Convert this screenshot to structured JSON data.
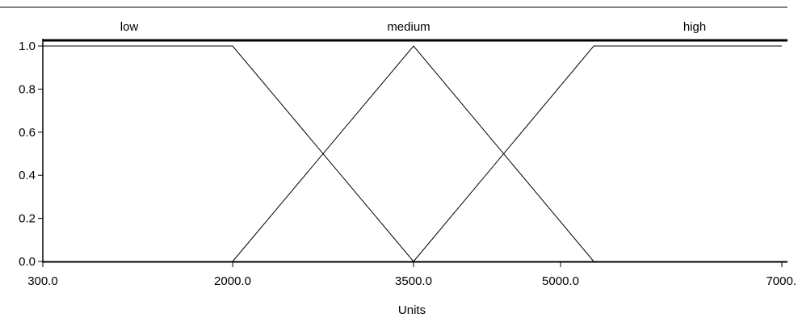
{
  "chart_data": {
    "type": "line",
    "xlabel": "Units",
    "ylabel": "",
    "xlim": [
      300,
      7000
    ],
    "ylim": [
      0,
      1
    ],
    "x_ticks": [
      300,
      2000,
      3500,
      5000,
      7000
    ],
    "x_tick_labels": [
      "300.0",
      "2000.0",
      "3500.0",
      "5000.0",
      "7000."
    ],
    "y_ticks": [
      0,
      0.2,
      0.4,
      0.6,
      0.8,
      1
    ],
    "y_tick_labels": [
      "0.0",
      "0.2",
      "0.4",
      "0.6",
      "0.8",
      "1.0"
    ],
    "grid": false,
    "legend_position": "top",
    "series": [
      {
        "name": "low",
        "x": [
          300,
          2000,
          3500
        ],
        "y": [
          1,
          1,
          0
        ]
      },
      {
        "name": "medium",
        "x": [
          2000,
          3500,
          5300
        ],
        "y": [
          0,
          1,
          0
        ]
      },
      {
        "name": "high",
        "x": [
          3500,
          5300,
          7000
        ],
        "y": [
          0,
          1,
          1
        ]
      }
    ]
  }
}
